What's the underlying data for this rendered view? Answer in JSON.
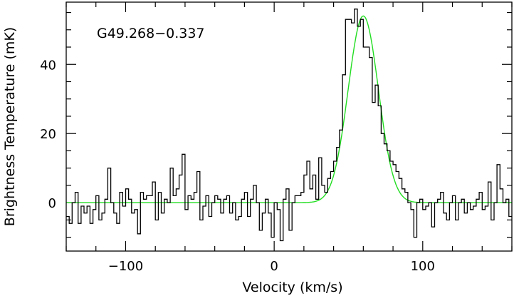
{
  "chart_data": {
    "type": "line",
    "title": "",
    "annotation": "G49.268−0.337",
    "xlabel": "Velocity (km/s)",
    "ylabel": "Brightness Temperature (mK)",
    "xlim": [
      -140,
      160
    ],
    "ylim": [
      -14,
      58
    ],
    "x_major_ticks": [
      -100,
      0,
      100
    ],
    "x_tick_labels": [
      "−100",
      "0",
      "100"
    ],
    "y_major_ticks": [
      0,
      20,
      40
    ],
    "y_tick_labels": [
      "0",
      "20",
      "40"
    ],
    "x_minor_step": 20,
    "y_minor_step": 5,
    "grid": false,
    "legend": "none",
    "series": [
      {
        "style": "steps",
        "color": "#000000",
        "x": [
          -140,
          -138,
          -136,
          -134,
          -132,
          -130,
          -128,
          -126,
          -124,
          -122,
          -120,
          -118,
          -116,
          -114,
          -112,
          -110,
          -108,
          -106,
          -104,
          -102,
          -100,
          -98,
          -96,
          -94,
          -92,
          -90,
          -88,
          -86,
          -84,
          -82,
          -80,
          -78,
          -76,
          -74,
          -72,
          -70,
          -68,
          -66,
          -64,
          -62,
          -60,
          -58,
          -56,
          -54,
          -52,
          -50,
          -48,
          -46,
          -44,
          -42,
          -40,
          -38,
          -36,
          -34,
          -32,
          -30,
          -28,
          -26,
          -24,
          -22,
          -20,
          -18,
          -16,
          -14,
          -12,
          -10,
          -8,
          -6,
          -4,
          -2,
          0,
          2,
          4,
          6,
          8,
          10,
          12,
          14,
          16,
          18,
          20,
          22,
          24,
          26,
          28,
          30,
          32,
          34,
          36,
          38,
          40,
          42,
          44,
          46,
          48,
          50,
          52,
          54,
          56,
          58,
          60,
          62,
          64,
          66,
          68,
          70,
          72,
          74,
          76,
          78,
          80,
          82,
          84,
          86,
          88,
          90,
          92,
          94,
          96,
          98,
          100,
          102,
          104,
          106,
          108,
          110,
          112,
          114,
          116,
          118,
          120,
          122,
          124,
          126,
          128,
          130,
          132,
          134,
          136,
          138,
          140,
          142,
          144,
          146,
          148,
          150,
          152,
          154,
          156,
          158
        ],
        "y": [
          -4,
          -6,
          0,
          3,
          -6,
          -1,
          -3,
          -1,
          -6,
          -2,
          2,
          -5,
          -3,
          1,
          10,
          0,
          -3,
          -6,
          3,
          -1,
          4,
          1,
          -3,
          -2,
          -9,
          3,
          1,
          2,
          2,
          6,
          -5,
          3,
          -3,
          1,
          0,
          10,
          2,
          4,
          8,
          14,
          -2,
          2,
          1,
          3,
          9,
          -5,
          -1,
          2,
          -4,
          0,
          2,
          1,
          -3,
          1,
          2,
          -3,
          0,
          -5,
          -4,
          1,
          3,
          -4,
          1,
          5,
          0,
          -8,
          -3,
          1,
          -3,
          -10,
          0,
          -2,
          -11,
          1,
          4,
          -8,
          0,
          2,
          2,
          3,
          8,
          12,
          4,
          8,
          1,
          13,
          5,
          3,
          7,
          9,
          12,
          16,
          21,
          37,
          53,
          53,
          52,
          56,
          51,
          53,
          45,
          45,
          42,
          29,
          34,
          28,
          20,
          17,
          15,
          12,
          11,
          9,
          7,
          4,
          3,
          0,
          -2,
          -10,
          0,
          1,
          -2,
          -1,
          0,
          -7,
          0,
          1,
          3,
          -3,
          -5,
          0,
          2,
          -5,
          0,
          1,
          -3,
          0,
          -2,
          -1,
          1,
          3,
          -2,
          -1,
          6,
          -5,
          0,
          11,
          4,
          0,
          1,
          -4
        ]
      },
      {
        "style": "line",
        "color": "#22dd22",
        "model": "gaussian",
        "peak": 54,
        "center": 60,
        "fwhm": 24,
        "baseline": 0
      }
    ]
  }
}
